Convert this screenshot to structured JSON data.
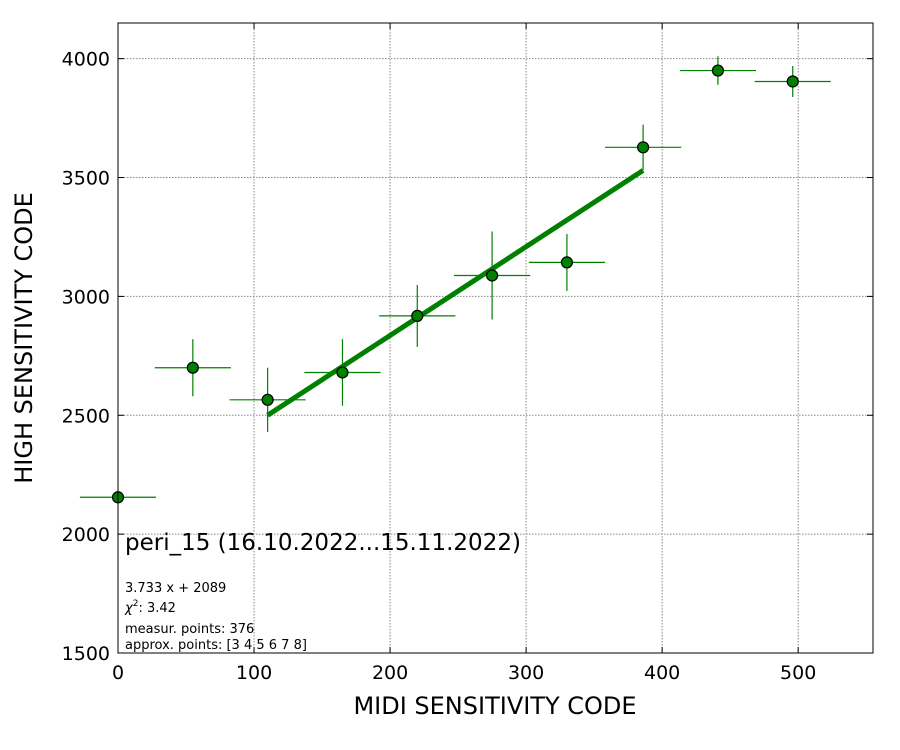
{
  "chart_data": {
    "type": "scatter",
    "xlabel": "MIDI SENSITIVITY CODE",
    "ylabel": "HIGH SENSITIVITY CODE",
    "xlim": [
      0,
      555
    ],
    "ylim": [
      1500,
      4150
    ],
    "xticks": [
      0,
      100,
      200,
      300,
      400,
      500
    ],
    "yticks": [
      1500,
      2000,
      2500,
      3000,
      3500,
      4000
    ],
    "grid": true,
    "colors": {
      "series": "#008000",
      "marker_face": "#008000",
      "marker_edge": "#000000",
      "grid": "#888888"
    },
    "series": [
      {
        "x": [
          0,
          55,
          110,
          165,
          220,
          275,
          330,
          386,
          441,
          496
        ],
        "y": [
          2155,
          2700,
          2565,
          2680,
          2918,
          3088,
          3143,
          3627,
          3950,
          3904
        ],
        "xerr": [
          28,
          28,
          28,
          28,
          28,
          28,
          28,
          28,
          28,
          28
        ],
        "yerr": [
          0,
          120,
          135,
          140,
          130,
          185,
          120,
          95,
          60,
          65
        ]
      }
    ],
    "fit_line": {
      "x": [
        110,
        386
      ],
      "y": [
        2500,
        3530
      ]
    },
    "annotations": {
      "title": "peri_15 (16.10.2022...15.11.2022)",
      "equation": "3.733 x + 2089",
      "chi2_value": ": 3.42",
      "measur_points": "measur. points: 376",
      "approx_points": "approx. points: [3 4 5 6 7 8]"
    }
  }
}
